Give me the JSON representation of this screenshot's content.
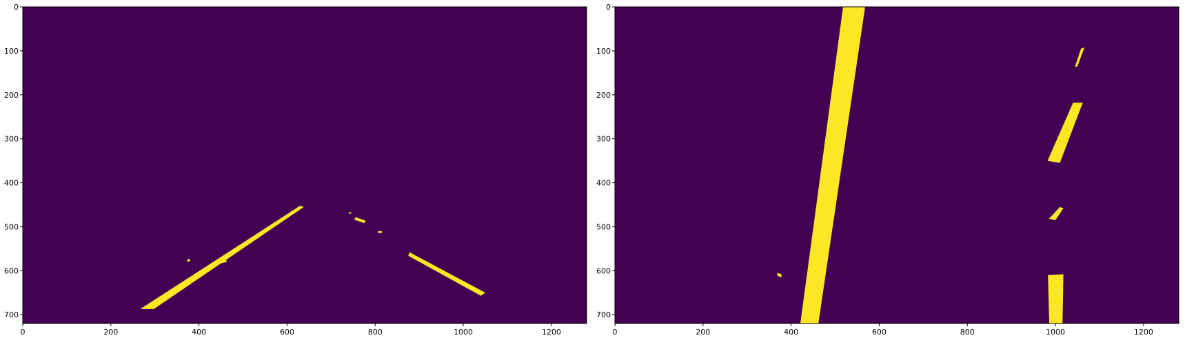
{
  "colors": {
    "background": "#440154",
    "mask": "#fde725",
    "axis": "#000000"
  },
  "chart_data": [
    {
      "type": "heatmap",
      "image": "binary lane-line threshold mask",
      "xlim": [
        0,
        1280
      ],
      "ylim": [
        720,
        0
      ],
      "xticks": [
        0,
        200,
        400,
        600,
        800,
        1000,
        1200
      ],
      "yticks": [
        0,
        100,
        200,
        300,
        400,
        500,
        600,
        700
      ],
      "xtick_labels": [
        "0",
        "200",
        "400",
        "600",
        "800",
        "1000",
        "1200"
      ],
      "ytick_labels": [
        "0",
        "100",
        "200",
        "300",
        "400",
        "500",
        "600",
        "700"
      ],
      "mask_regions": [
        {
          "name": "left-lane-line",
          "points": [
            [
              267,
              687
            ],
            [
              630,
              452
            ],
            [
              638,
              455
            ],
            [
              298,
              687
            ]
          ]
        },
        {
          "name": "right-lane-line",
          "points": [
            [
              878,
              558
            ],
            [
              1050,
              650
            ],
            [
              1040,
              657
            ],
            [
              875,
              566
            ]
          ]
        },
        {
          "name": "center-fragment",
          "points": [
            [
              755,
              478
            ],
            [
              778,
              486
            ],
            [
              776,
              492
            ],
            [
              753,
              484
            ]
          ]
        },
        {
          "name": "noise-1",
          "points": [
            [
              373,
              575
            ],
            [
              379,
              573
            ],
            [
              380,
              578
            ],
            [
              374,
              580
            ]
          ]
        },
        {
          "name": "noise-2",
          "points": [
            [
              450,
              578
            ],
            [
              462,
              575
            ],
            [
              463,
              580
            ],
            [
              451,
              583
            ]
          ]
        },
        {
          "name": "noise-3",
          "points": [
            [
              806,
              510
            ],
            [
              815,
              510
            ],
            [
              815,
              514
            ],
            [
              806,
              514
            ]
          ]
        },
        {
          "name": "noise-4",
          "points": [
            [
              740,
              467
            ],
            [
              746,
              467
            ],
            [
              746,
              470
            ],
            [
              740,
              470
            ]
          ]
        }
      ]
    },
    {
      "type": "heatmap",
      "image": "binary warped lane-line mask",
      "xlim": [
        0,
        1280
      ],
      "ylim": [
        720,
        0
      ],
      "xticks": [
        0,
        200,
        400,
        600,
        800,
        1000,
        1200
      ],
      "yticks": [
        0,
        100,
        200,
        300,
        400,
        500,
        600,
        700
      ],
      "xtick_labels": [
        "0",
        "200",
        "400",
        "600",
        "800",
        "1000",
        "1200"
      ],
      "ytick_labels": [
        "0",
        "100",
        "200",
        "300",
        "400",
        "500",
        "600",
        "700"
      ],
      "mask_regions": [
        {
          "name": "left-lane-line",
          "points": [
            [
              518,
              0
            ],
            [
              568,
              0
            ],
            [
              462,
              720
            ],
            [
              421,
              720
            ]
          ]
        },
        {
          "name": "right-top-segment",
          "points": [
            [
              1058,
              95
            ],
            [
              1066,
              92
            ],
            [
              1050,
              135
            ],
            [
              1044,
              137
            ]
          ]
        },
        {
          "name": "right-mid-segment",
          "points": [
            [
              1040,
              218
            ],
            [
              1062,
              218
            ],
            [
              1010,
              355
            ],
            [
              982,
              350
            ]
          ]
        },
        {
          "name": "right-small-segment",
          "points": [
            [
              1010,
              455
            ],
            [
              1018,
              458
            ],
            [
              1000,
              485
            ],
            [
              985,
              482
            ]
          ]
        },
        {
          "name": "right-bottom-segment",
          "points": [
            [
              983,
              610
            ],
            [
              1018,
              608
            ],
            [
              1016,
              720
            ],
            [
              986,
              720
            ]
          ]
        },
        {
          "name": "noise-1",
          "points": [
            [
              368,
              605
            ],
            [
              378,
              608
            ],
            [
              378,
              615
            ],
            [
              369,
              612
            ]
          ]
        },
        {
          "name": "noise-2",
          "points": [
            [
              455,
              608
            ],
            [
              470,
              612
            ],
            [
              470,
              618
            ],
            [
              456,
              615
            ]
          ]
        }
      ]
    }
  ]
}
